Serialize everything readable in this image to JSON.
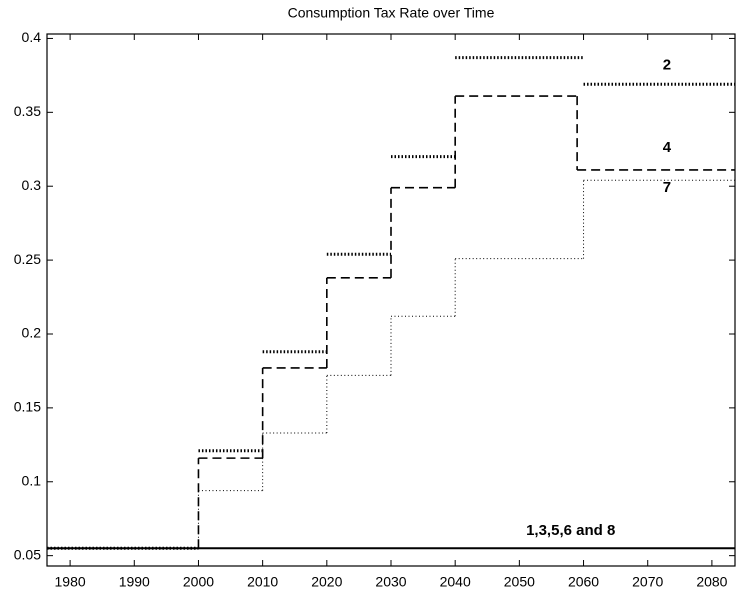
{
  "chart_data": {
    "type": "step",
    "title": "Consumption Tax Rate over Time",
    "xlim": [
      1976.4,
      2083.6
    ],
    "xticks": [
      1980,
      1990,
      2000,
      2010,
      2020,
      2030,
      2040,
      2050,
      2060,
      2070,
      2080
    ],
    "ylim": [
      0.043,
      0.403
    ],
    "yticks": [
      0.05,
      0.1,
      0.15,
      0.2,
      0.25,
      0.3,
      0.35,
      0.4
    ],
    "grid": false,
    "series": [
      {
        "name": "2",
        "color": "#000000",
        "style": "dotted-bold",
        "x": [
          1976.4,
          2000,
          2010,
          2020,
          2030,
          2040,
          2060
        ],
        "values": [
          0.055,
          0.121,
          0.188,
          0.254,
          0.32,
          0.387,
          0.369
        ]
      },
      {
        "name": "4",
        "color": "#000000",
        "style": "dashed",
        "x": [
          1976.4,
          2000,
          2010,
          2020,
          2030,
          2040,
          2059
        ],
        "values": [
          0.055,
          0.116,
          0.177,
          0.238,
          0.299,
          0.361,
          0.311
        ]
      },
      {
        "name": "7",
        "color": "#000000",
        "style": "dotted",
        "x": [
          1976.4,
          2000,
          2010,
          2020,
          2030,
          2040,
          2060
        ],
        "values": [
          0.055,
          0.094,
          0.133,
          0.172,
          0.212,
          0.251,
          0.304
        ]
      },
      {
        "name": "1,3,5,6 and 8",
        "color": "#000000",
        "style": "solid",
        "x": [
          1976.4
        ],
        "values": [
          0.055
        ]
      }
    ]
  }
}
